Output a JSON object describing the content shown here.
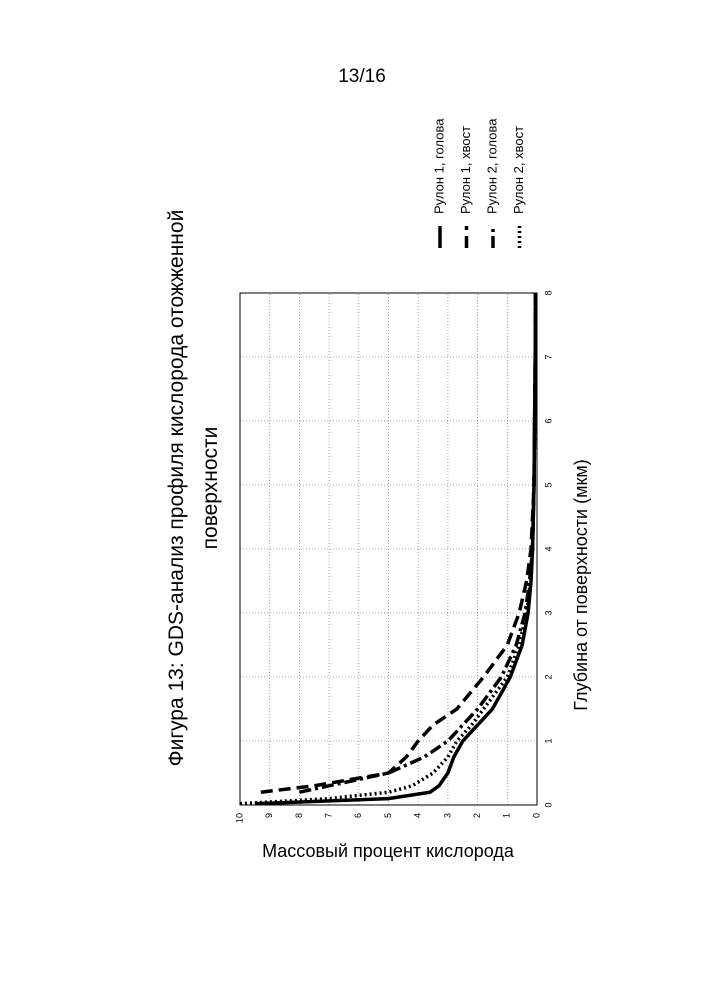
{
  "page_number": "13/16",
  "chart_data": {
    "type": "line",
    "title": "Фигура 13: GDS-анализ профиля кислорода отожженной поверхности",
    "x_label": "Глубина от поверхности (мкм)",
    "y_label": "Массовый процент кислорода",
    "x": [
      0.02,
      0.1,
      0.2,
      0.3,
      0.5,
      0.75,
      1,
      1.25,
      1.5,
      2,
      2.5,
      3,
      3.5,
      4,
      5,
      6,
      7,
      8
    ],
    "series": [
      {
        "name": "Рулон 1, голова",
        "color": "#000000",
        "dash": "solid",
        "values": [
          9.5,
          5,
          3.6,
          3.3,
          3,
          2.8,
          2.5,
          2,
          1.5,
          0.9,
          0.5,
          0.3,
          0.2,
          0.15,
          0.1,
          0.08,
          0.06,
          0.05
        ]
      },
      {
        "name": "Рулон 1, хвост",
        "color": "#000000",
        "dash": "dashed",
        "values": [
          null,
          null,
          9.3,
          7.5,
          5,
          4.4,
          4,
          3.5,
          2.7,
          1.8,
          1,
          0.6,
          0.35,
          0.2,
          0.1,
          0.08,
          0.06,
          0.05
        ]
      },
      {
        "name": "Рулон 2, голова",
        "color": "#000000",
        "dash": "dashdot",
        "values": [
          null,
          null,
          8,
          7,
          5,
          3.8,
          3,
          2.5,
          2,
          1.2,
          0.7,
          0.4,
          0.25,
          0.15,
          0.1,
          0.08,
          0.06,
          0.05
        ]
      },
      {
        "name": "Рулон 2, хвост",
        "color": "#000000",
        "dash": "dotted",
        "values": [
          10,
          7,
          5,
          4.2,
          3.5,
          3,
          2.7,
          2.2,
          1.8,
          1,
          0.6,
          0.35,
          0.22,
          0.15,
          0.1,
          0.08,
          0.06,
          0.05
        ]
      }
    ],
    "xlim": [
      0,
      8
    ],
    "xticks": [
      0,
      1,
      2,
      3,
      4,
      5,
      6,
      7,
      8
    ],
    "ylim": [
      0,
      10
    ],
    "yticks": [
      0,
      1,
      2,
      3,
      4,
      5,
      6,
      7,
      8,
      9,
      10
    ],
    "grid": true,
    "legend": "right"
  }
}
